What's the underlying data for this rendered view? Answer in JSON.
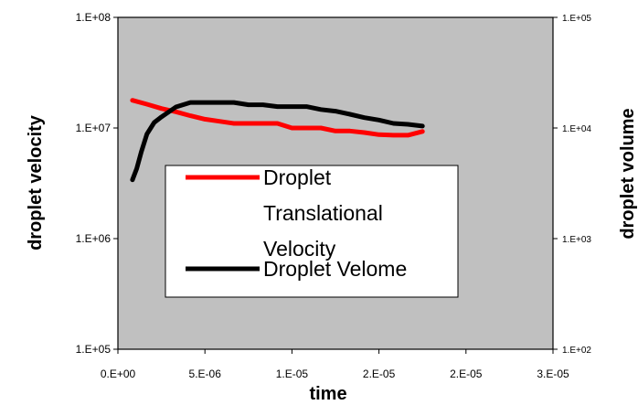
{
  "chart_data": {
    "type": "line",
    "xlabel": "time",
    "ylabel": "droplet velocity",
    "y2label": "droplet volume",
    "xlim": [
      0,
      3e-05
    ],
    "ylim": [
      100000,
      100000000
    ],
    "y2lim": [
      100,
      100000
    ],
    "yscale": "log",
    "y2scale": "log",
    "x_tick_labels": [
      "0.E+00",
      "5.E-06",
      "1.E-05",
      "2.E-05",
      "2.E-05",
      "3.E-05"
    ],
    "y_tick_labels": [
      "1.E+05",
      "1.E+06",
      "1.E+07",
      "1.E+08"
    ],
    "y2_tick_labels": [
      "1.E+02",
      "1.E+03",
      "1.E+04",
      "1.E+05"
    ],
    "grid": false,
    "plot_background": "#c0c0c0",
    "legend_position": "center-left",
    "series": [
      {
        "name": "Droplet Translational Velocity",
        "axis": "left",
        "color": "#ff0000",
        "x": [
          1e-06,
          2e-06,
          3e-06,
          4e-06,
          5e-06,
          6e-06,
          7e-06,
          8e-06,
          9e-06,
          1e-05,
          1.1e-05,
          1.2e-05,
          1.3e-05,
          1.4e-05,
          1.5e-05,
          1.6e-05,
          1.7e-05,
          1.8e-05,
          1.9e-05,
          2e-05,
          2.1e-05
        ],
        "values": [
          17800000,
          16400000,
          15000000,
          14000000,
          12900000,
          12000000,
          11500000,
          11000000,
          11000000,
          11000000,
          11000000,
          10000000,
          10000000,
          10000000,
          9400000,
          9400000,
          9100000,
          8700000,
          8600000,
          8600000,
          9300000
        ]
      },
      {
        "name": "Droplet Velome",
        "axis": "right",
        "color": "#000000",
        "x": [
          1e-06,
          1.3e-06,
          1.6e-06,
          2e-06,
          2.5e-06,
          3e-06,
          4e-06,
          5e-06,
          6e-06,
          7e-06,
          8e-06,
          9e-06,
          1e-05,
          1.1e-05,
          1.2e-05,
          1.3e-05,
          1.4e-05,
          1.5e-05,
          1.6e-05,
          1.7e-05,
          1.8e-05,
          1.9e-05,
          2e-05,
          2.1e-05
        ],
        "values": [
          3400,
          4300,
          6000,
          8800,
          11200,
          12600,
          15500,
          17000,
          17000,
          17000,
          17000,
          16200,
          16200,
          15600,
          15600,
          15600,
          14700,
          14200,
          13300,
          12400,
          11800,
          11000,
          10800,
          10400
        ]
      }
    ]
  }
}
